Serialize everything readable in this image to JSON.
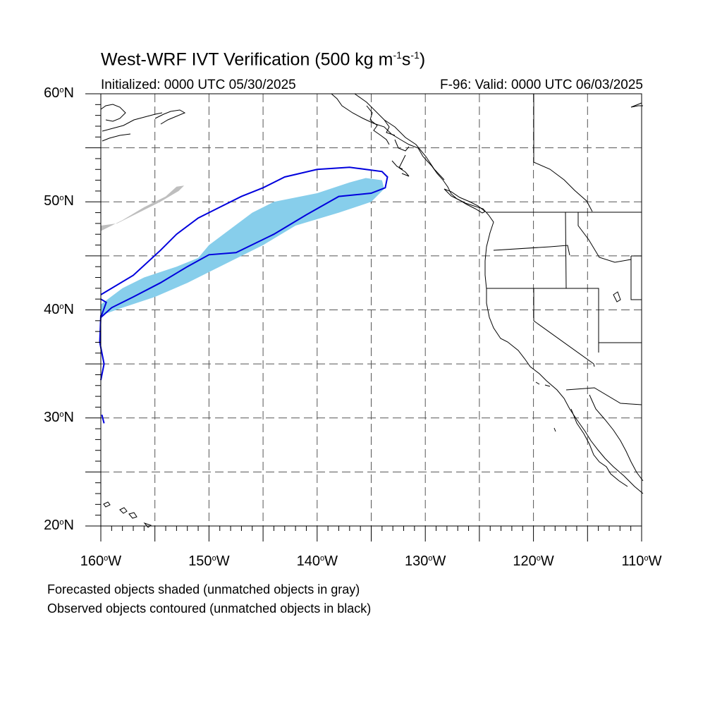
{
  "title": {
    "text": "West-WRF IVT Verification (500 kg m",
    "exp1": "-1",
    "mid": "s",
    "exp2": "-1",
    "end": ")"
  },
  "initialized": "Initialized: 0000 UTC 05/30/2025",
  "valid": "F-96: Valid: 0000 UTC 06/03/2025",
  "degree_symbol": "o",
  "lat_labels": [
    {
      "num": "60",
      "hem": "N"
    },
    {
      "num": "50",
      "hem": "N"
    },
    {
      "num": "40",
      "hem": "N"
    },
    {
      "num": "30",
      "hem": "N"
    },
    {
      "num": "20",
      "hem": "N"
    }
  ],
  "lon_labels": [
    {
      "num": "160",
      "hem": "W"
    },
    {
      "num": "150",
      "hem": "W"
    },
    {
      "num": "140",
      "hem": "W"
    },
    {
      "num": "130",
      "hem": "W"
    },
    {
      "num": "120",
      "hem": "W"
    },
    {
      "num": "110",
      "hem": "W"
    }
  ],
  "captions": [
    "Forecasted objects shaded (unmatched objects in gray)",
    "Observed objects contoured (unmatched objects in black)"
  ],
  "map": {
    "lon_range": [
      -160,
      -110
    ],
    "lat_range": [
      20,
      60
    ],
    "grid_spacing_deg": 5,
    "grid": true,
    "colors": {
      "matched_forecast_fill": "#87CEEB",
      "unmatched_forecast_fill": "#BEBEBE",
      "observed_contour": "#0000DD",
      "coastline": "#000000",
      "grid": "#555555"
    },
    "matched_forecast_object": [
      [
        -160,
        40.5
      ],
      [
        -158,
        42
      ],
      [
        -156,
        43
      ],
      [
        -153,
        44
      ],
      [
        -151,
        44.8
      ],
      [
        -150,
        46
      ],
      [
        -148,
        47.5
      ],
      [
        -146,
        49
      ],
      [
        -144,
        50
      ],
      [
        -140,
        50.8
      ],
      [
        -137,
        51.8
      ],
      [
        -135.5,
        52.2
      ],
      [
        -134,
        52
      ],
      [
        -133.8,
        51.2
      ],
      [
        -135,
        50
      ],
      [
        -138,
        49
      ],
      [
        -142,
        47.8
      ],
      [
        -145,
        46
      ],
      [
        -149,
        44
      ],
      [
        -152,
        42.5
      ],
      [
        -155,
        41.2
      ],
      [
        -158,
        40.2
      ],
      [
        -160,
        39.5
      ]
    ],
    "unmatched_forecast_object": [
      [
        -160,
        47.3
      ],
      [
        -158,
        48.3
      ],
      [
        -156,
        49.5
      ],
      [
        -154,
        50.5
      ],
      [
        -153,
        51.4
      ],
      [
        -152.3,
        51.5
      ],
      [
        -152.8,
        51
      ],
      [
        -154.5,
        50
      ],
      [
        -156.5,
        49
      ],
      [
        -158.5,
        48
      ],
      [
        -160,
        47.8
      ]
    ],
    "observed_object_outer": [
      [
        -160,
        41.4
      ],
      [
        -157,
        43.2
      ],
      [
        -154.5,
        45.5
      ],
      [
        -153,
        47
      ],
      [
        -151,
        48.5
      ],
      [
        -149,
        49.5
      ],
      [
        -147,
        50.5
      ],
      [
        -145,
        51.3
      ],
      [
        -143,
        52.3
      ],
      [
        -140,
        53
      ],
      [
        -137,
        53.2
      ],
      [
        -134,
        52.8
      ],
      [
        -133.5,
        52.3
      ],
      [
        -133.7,
        51.3
      ],
      [
        -135,
        50.8
      ],
      [
        -138,
        50.5
      ],
      [
        -141,
        48.8
      ],
      [
        -144,
        47
      ],
      [
        -147.5,
        45.3
      ],
      [
        -150,
        45.1
      ],
      [
        -152,
        44
      ],
      [
        -154.5,
        42.5
      ],
      [
        -157,
        41.2
      ],
      [
        -159,
        40.2
      ],
      [
        -160,
        39.3
      ],
      [
        -159.5,
        40.7
      ],
      [
        -160,
        41
      ]
    ],
    "observed_object_west_edge": [
      [
        -160,
        39.5
      ],
      [
        -160.1,
        37
      ],
      [
        -159.7,
        35
      ],
      [
        -160,
        33.5
      ]
    ],
    "observed_object_fragment": [
      [
        -159.9,
        30.3
      ],
      [
        -159.7,
        29.5
      ]
    ],
    "state_borders_label": "US state borders"
  }
}
